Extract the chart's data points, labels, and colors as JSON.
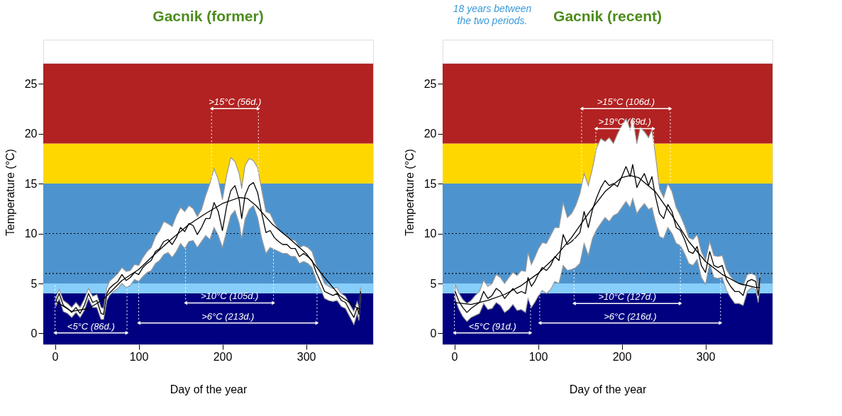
{
  "chart_data": [
    {
      "type": "line",
      "title": "Gacnik (former)",
      "xlabel": "Day of the year",
      "ylabel": "Temperature (°C)",
      "xlim": [
        -14,
        380
      ],
      "ylim": [
        -1.1,
        29.4
      ],
      "xticks": [
        0,
        100,
        200,
        300
      ],
      "yticks": [
        0,
        5,
        10,
        15,
        20,
        25
      ],
      "bands": [
        {
          "axis": "y",
          "from": -1.1,
          "to": 4,
          "color": "#000080"
        },
        {
          "axis": "y",
          "from": 4,
          "to": 5,
          "color": "#87cefa"
        },
        {
          "axis": "y",
          "from": 5,
          "to": 15,
          "color": "#4d94cf"
        },
        {
          "axis": "y",
          "from": 15,
          "to": 19,
          "color": "#ffd700"
        },
        {
          "axis": "y",
          "from": 19,
          "to": 27,
          "color": "#b22222"
        }
      ],
      "annotations": [
        "<5°C (86d.)",
        ">6°C (213d.)",
        ">10°C (105d.)",
        ">15°C (56d.)"
      ],
      "ref_lines": [
        {
          "axis": "y",
          "value": 10,
          "color": "#000000",
          "line_style": "dotted"
        },
        {
          "axis": "y",
          "value": 6,
          "color": "#000000",
          "line_style": "dotted"
        },
        {
          "axis": "x",
          "value": 0,
          "color": "#ffffff",
          "line_style": "dotted"
        },
        {
          "axis": "x",
          "value": 86,
          "color": "#ffffff",
          "line_style": "dotted"
        },
        {
          "axis": "x",
          "value": 100,
          "color": "#ffffff",
          "line_style": "dotted"
        },
        {
          "axis": "x",
          "value": 313,
          "color": "#ffffff",
          "line_style": "dotted"
        },
        {
          "axis": "x",
          "value": 156,
          "color": "#ffffff",
          "line_style": "dotted"
        },
        {
          "axis": "x",
          "value": 261,
          "color": "#ffffff",
          "line_style": "dotted"
        },
        {
          "axis": "x",
          "value": 187,
          "color": "#ffffff",
          "line_style": "dotted"
        },
        {
          "axis": "x",
          "value": 243,
          "color": "#ffffff",
          "line_style": "dotted"
        }
      ],
      "series": [
        {
          "type": "line",
          "color": "#000000",
          "x": [
            1,
            5,
            10,
            15,
            20,
            25,
            30,
            35,
            40,
            45,
            50,
            55,
            58,
            62,
            65,
            70,
            75,
            80,
            85,
            90,
            95,
            100,
            105,
            110,
            115,
            120,
            125,
            130,
            135,
            140,
            145,
            150,
            155,
            160,
            165,
            170,
            175,
            180,
            185,
            190,
            195,
            200,
            205,
            210,
            215,
            220,
            223,
            227,
            232,
            237,
            242,
            247,
            252,
            257,
            262,
            267,
            272,
            277,
            282,
            287,
            292,
            297,
            302,
            307,
            312,
            317,
            322,
            327,
            332,
            337,
            342,
            347,
            352,
            357,
            361,
            363,
            365
          ],
          "values": [
            3.2,
            4.0,
            2.8,
            2.5,
            2.1,
            2.6,
            2.0,
            2.8,
            4.0,
            3.1,
            3.3,
            2.0,
            1.9,
            4.0,
            4.5,
            4.9,
            5.2,
            5.9,
            5.3,
            5.6,
            6.1,
            5.9,
            6.6,
            7.0,
            7.3,
            8.2,
            8.5,
            9.2,
            9.4,
            8.9,
            9.6,
            10.6,
            10.2,
            11.0,
            10.8,
            9.9,
            10.6,
            11.5,
            11.5,
            13.1,
            12.2,
            10.3,
            12.7,
            14.3,
            14.8,
            13.4,
            11.5,
            13.8,
            14.8,
            15.1,
            14.1,
            12.0,
            10.1,
            10.3,
            9.6,
            9.2,
            8.9,
            8.9,
            8.5,
            8.5,
            7.7,
            8.0,
            7.7,
            7.3,
            6.1,
            5.2,
            4.2,
            4.0,
            3.8,
            4.0,
            3.3,
            3.1,
            2.3,
            1.6,
            2.6,
            1.9,
            4.2
          ],
          "lower": [
            2.7,
            3.5,
            2.2,
            2.0,
            1.6,
            2.1,
            1.6,
            2.3,
            3.5,
            2.6,
            2.6,
            1.4,
            1.4,
            3.3,
            3.8,
            4.2,
            4.5,
            5.0,
            4.6,
            4.8,
            5.4,
            5.2,
            5.7,
            6.1,
            6.3,
            7.0,
            7.3,
            7.9,
            8.1,
            7.6,
            8.2,
            9.0,
            8.5,
            9.2,
            9.3,
            8.6,
            9.2,
            9.8,
            9.4,
            10.6,
            9.8,
            8.6,
            10.2,
            11.8,
            12.3,
            11.0,
            9.5,
            11.4,
            12.4,
            12.8,
            11.6,
            9.5,
            8.0,
            8.6,
            8.4,
            8.2,
            8.0,
            8.0,
            7.7,
            7.7,
            7.0,
            7.2,
            7.0,
            6.6,
            5.4,
            4.5,
            3.5,
            3.3,
            3.2,
            3.3,
            2.7,
            2.5,
            1.7,
            0.9,
            2.0,
            1.3,
            3.6
          ],
          "upper": [
            3.6,
            4.4,
            3.3,
            3.0,
            2.6,
            3.1,
            2.6,
            3.4,
            4.5,
            3.7,
            3.9,
            2.6,
            2.5,
            4.6,
            5.2,
            5.6,
            6.0,
            6.6,
            6.2,
            6.3,
            6.9,
            6.8,
            7.6,
            8.2,
            8.6,
            9.7,
            10.3,
            11.2,
            11.0,
            10.7,
            11.8,
            12.6,
            12.2,
            12.8,
            12.5,
            11.7,
            12.4,
            13.8,
            15.0,
            16.5,
            15.4,
            13.4,
            15.8,
            17.6,
            17.2,
            16.0,
            14.5,
            16.8,
            17.5,
            17.3,
            16.6,
            14.3,
            12.2,
            12.0,
            11.1,
            10.4,
            10.0,
            9.8,
            9.4,
            9.3,
            8.6,
            8.8,
            8.6,
            8.2,
            6.9,
            6.0,
            5.0,
            4.7,
            4.5,
            4.6,
            4.0,
            3.7,
            2.9,
            2.2,
            3.2,
            2.5,
            4.6
          ]
        },
        {
          "type": "line",
          "color": "#000000",
          "x": [
            1,
            20,
            40,
            50,
            60,
            80,
            100,
            120,
            140,
            160,
            180,
            200,
            220,
            230,
            240,
            260,
            280,
            300,
            320,
            340,
            360,
            365
          ],
          "values": [
            3.2,
            2.2,
            2.5,
            3.0,
            3.6,
            5.3,
            6.4,
            8.0,
            9.5,
            10.9,
            12.0,
            13.0,
            13.6,
            13.5,
            12.8,
            10.9,
            9.5,
            8.0,
            5.8,
            3.8,
            2.6,
            2.4
          ]
        }
      ]
    },
    {
      "type": "line",
      "title": "Gacnik (recent)",
      "xlabel": "Day of the year",
      "ylabel": "Temperature (°C)",
      "xlim": [
        -14,
        380
      ],
      "ylim": [
        -1.1,
        29.4
      ],
      "xticks": [
        0,
        100,
        200,
        300
      ],
      "yticks": [
        0,
        5,
        10,
        15,
        20,
        25
      ],
      "bands": [
        {
          "axis": "y",
          "from": -1.1,
          "to": 4,
          "color": "#000080"
        },
        {
          "axis": "y",
          "from": 4,
          "to": 5,
          "color": "#87cefa"
        },
        {
          "axis": "y",
          "from": 5,
          "to": 15,
          "color": "#4d94cf"
        },
        {
          "axis": "y",
          "from": 15,
          "to": 19,
          "color": "#ffd700"
        },
        {
          "axis": "y",
          "from": 19,
          "to": 27,
          "color": "#b22222"
        }
      ],
      "annotations": [
        "18 years between the two periods.",
        "<5°C (91d.)",
        ">6°C (216d.)",
        ">10°C (127d.)",
        ">15°C (106d.)",
        ">19°C (69d.)"
      ],
      "ref_lines": [
        {
          "axis": "y",
          "value": 10,
          "color": "#000000",
          "line_style": "dotted"
        },
        {
          "axis": "y",
          "value": 6,
          "color": "#000000",
          "line_style": "dotted"
        },
        {
          "axis": "x",
          "value": 0,
          "color": "#ffffff",
          "line_style": "dotted"
        },
        {
          "axis": "x",
          "value": 91,
          "color": "#ffffff",
          "line_style": "dotted"
        },
        {
          "axis": "x",
          "value": 102,
          "color": "#ffffff",
          "line_style": "dotted"
        },
        {
          "axis": "x",
          "value": 318,
          "color": "#ffffff",
          "line_style": "dotted"
        },
        {
          "axis": "x",
          "value": 143,
          "color": "#ffffff",
          "line_style": "dotted"
        },
        {
          "axis": "x",
          "value": 270,
          "color": "#ffffff",
          "line_style": "dotted"
        },
        {
          "axis": "x",
          "value": 152,
          "color": "#ffffff",
          "line_style": "dotted"
        },
        {
          "axis": "x",
          "value": 258,
          "color": "#ffffff",
          "line_style": "dotted"
        },
        {
          "axis": "x",
          "value": 169,
          "color": "#ffffff",
          "line_style": "dotted"
        },
        {
          "axis": "x",
          "value": 238,
          "color": "#ffffff",
          "line_style": "dotted"
        }
      ],
      "series": [
        {
          "type": "line",
          "color": "#000000",
          "x": [
            1,
            5,
            10,
            15,
            20,
            25,
            30,
            35,
            40,
            45,
            50,
            55,
            60,
            65,
            70,
            75,
            80,
            85,
            88,
            92,
            96,
            100,
            105,
            110,
            115,
            120,
            125,
            130,
            135,
            140,
            145,
            150,
            155,
            160,
            165,
            170,
            175,
            180,
            185,
            190,
            195,
            200,
            205,
            210,
            213,
            218,
            222,
            227,
            232,
            236,
            240,
            245,
            250,
            255,
            260,
            265,
            270,
            275,
            280,
            285,
            290,
            295,
            300,
            305,
            310,
            315,
            320,
            325,
            330,
            335,
            340,
            345,
            350,
            355,
            360,
            363,
            365
          ],
          "values": [
            4.2,
            3.3,
            2.6,
            2.1,
            2.5,
            2.8,
            3.1,
            4.2,
            3.5,
            3.8,
            4.5,
            4.2,
            3.5,
            4.0,
            4.5,
            4.0,
            4.2,
            4.0,
            5.6,
            4.7,
            5.2,
            5.9,
            6.6,
            6.3,
            6.8,
            7.7,
            7.3,
            9.9,
            8.9,
            9.2,
            9.6,
            10.1,
            12.2,
            10.6,
            12.4,
            13.6,
            14.6,
            15.3,
            14.8,
            15.0,
            14.7,
            15.7,
            16.7,
            15.7,
            16.9,
            14.6,
            15.3,
            16.0,
            14.8,
            15.7,
            13.8,
            12.0,
            11.5,
            12.9,
            12.2,
            10.6,
            10.3,
            9.4,
            8.2,
            8.0,
            8.7,
            6.8,
            6.1,
            8.2,
            6.8,
            6.6,
            6.8,
            5.4,
            4.7,
            4.2,
            4.2,
            3.8,
            5.2,
            5.4,
            5.2,
            3.8,
            5.6
          ],
          "lower": [
            3.5,
            2.5,
            1.7,
            1.2,
            1.6,
            1.8,
            2.0,
            3.0,
            2.4,
            2.5,
            3.1,
            2.8,
            2.1,
            2.4,
            2.9,
            2.3,
            2.4,
            2.1,
            3.5,
            2.6,
            3.1,
            3.7,
            4.3,
            4.0,
            4.4,
            5.2,
            5.0,
            6.8,
            6.3,
            6.4,
            6.6,
            7.0,
            9.0,
            7.8,
            9.5,
            10.4,
            11.0,
            11.6,
            11.2,
            11.8,
            12.0,
            12.6,
            13.2,
            12.6,
            13.5,
            12.0,
            12.5,
            13.0,
            12.4,
            12.6,
            11.2,
            9.7,
            9.5,
            10.6,
            10.0,
            9.0,
            8.8,
            8.0,
            7.0,
            6.8,
            7.4,
            5.6,
            4.9,
            7.0,
            5.6,
            5.5,
            5.6,
            4.3,
            3.6,
            3.0,
            3.0,
            2.8,
            4.2,
            4.6,
            4.4,
            3.1,
            4.8
          ],
          "upper": [
            4.9,
            4.1,
            3.4,
            3.0,
            3.3,
            3.8,
            4.2,
            5.3,
            4.7,
            5.0,
            5.9,
            5.6,
            5.0,
            5.6,
            6.1,
            5.8,
            6.3,
            6.2,
            8.1,
            6.9,
            7.6,
            8.4,
            9.1,
            9.0,
            9.8,
            10.6,
            10.6,
            13.1,
            11.6,
            12.0,
            12.8,
            14.0,
            16.0,
            14.8,
            16.5,
            18.6,
            19.5,
            19.2,
            19.6,
            19.0,
            20.0,
            20.8,
            21.5,
            20.4,
            21.6,
            19.0,
            20.6,
            20.2,
            19.6,
            20.4,
            18.0,
            14.5,
            13.6,
            15.0,
            14.2,
            12.6,
            11.8,
            10.8,
            9.6,
            9.4,
            9.9,
            8.2,
            7.3,
            9.2,
            7.8,
            7.7,
            7.8,
            6.4,
            5.7,
            5.2,
            5.0,
            4.8,
            5.9,
            6.0,
            5.8,
            4.6,
            6.1
          ]
        },
        {
          "type": "line",
          "color": "#000000",
          "x": [
            1,
            20,
            40,
            60,
            80,
            100,
            120,
            140,
            160,
            180,
            200,
            210,
            220,
            240,
            260,
            280,
            300,
            320,
            340,
            360,
            365
          ],
          "values": [
            3.1,
            2.9,
            3.3,
            3.9,
            4.8,
            6.0,
            7.6,
            9.6,
            12.0,
            14.2,
            15.6,
            15.8,
            15.6,
            14.2,
            11.8,
            9.2,
            7.2,
            5.9,
            5.0,
            4.6,
            4.6
          ]
        }
      ]
    }
  ]
}
